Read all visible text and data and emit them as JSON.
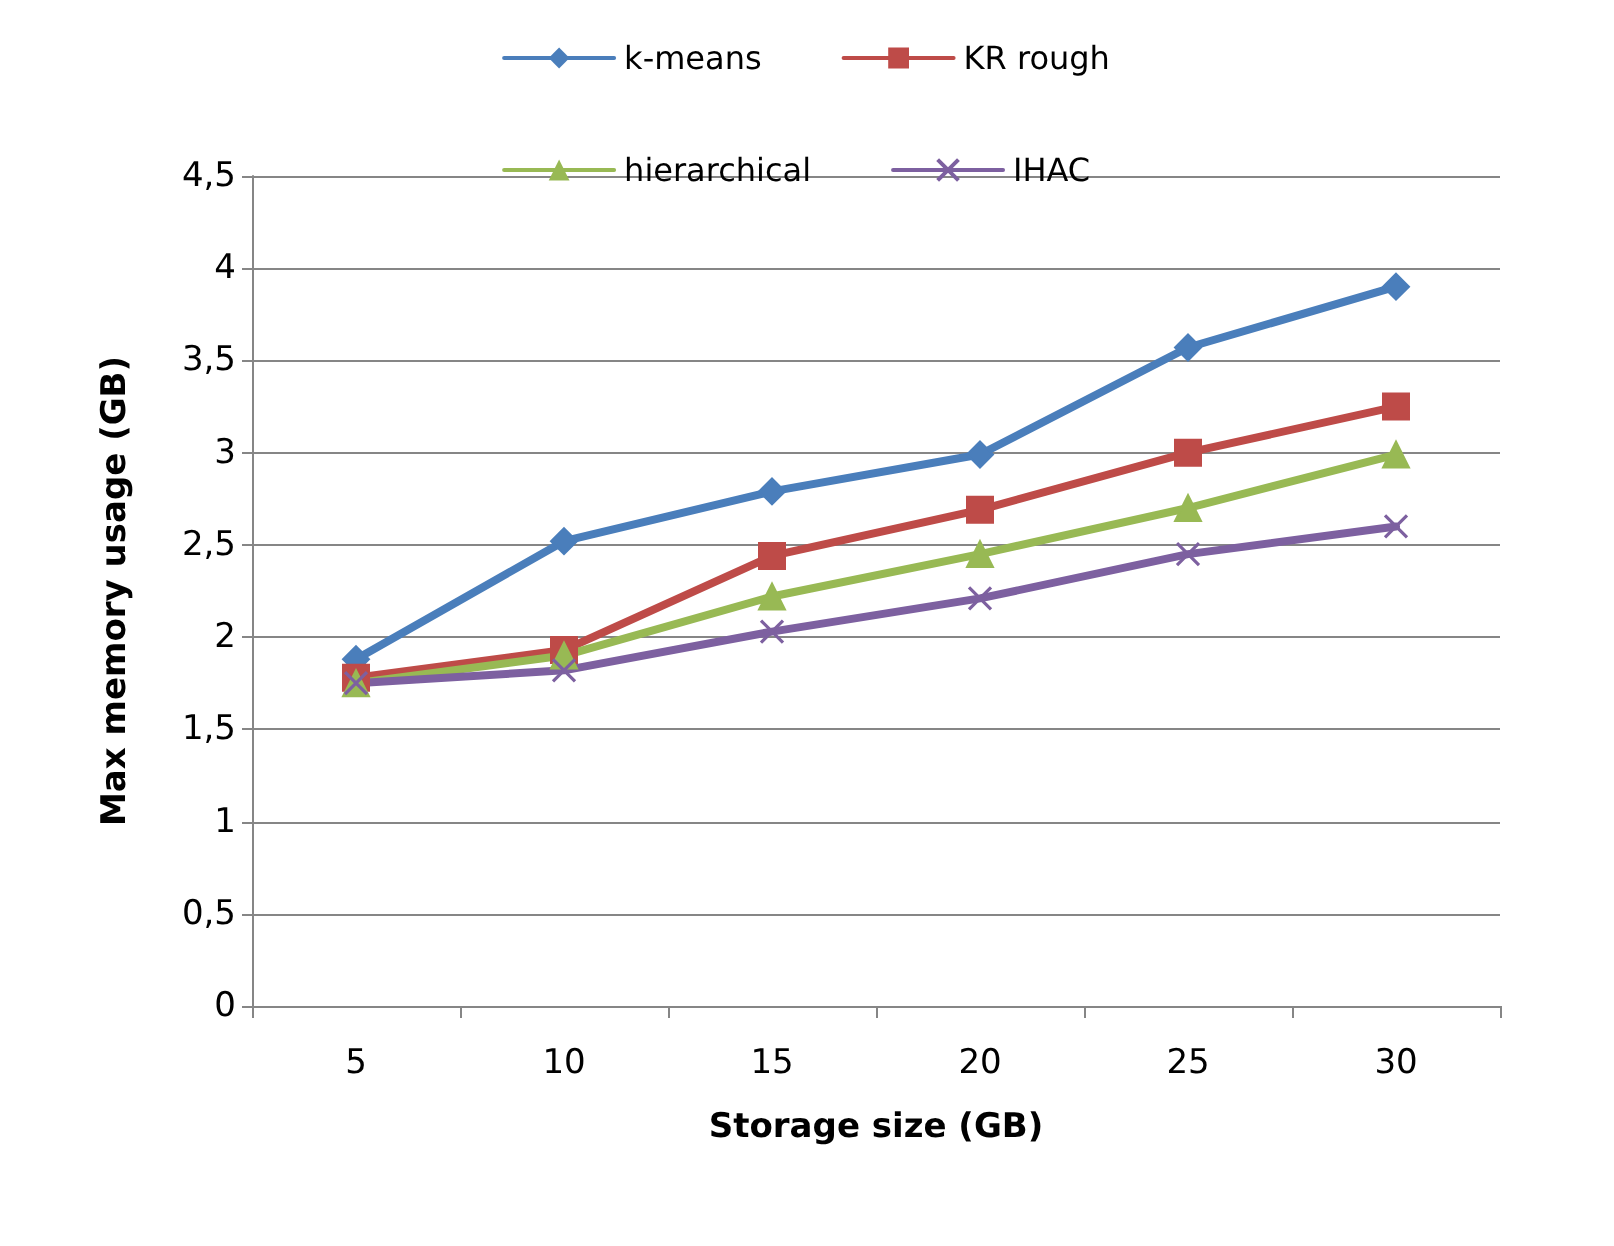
{
  "chart_data": {
    "type": "line",
    "xlabel": "Storage size (GB)",
    "ylabel": "Max memory usage (GB)",
    "categories": [
      "5",
      "10",
      "15",
      "20",
      "25",
      "30"
    ],
    "series": [
      {
        "name": "k-means",
        "color": "#4a7ebb",
        "marker": "diamond",
        "values": [
          1.88,
          2.52,
          2.79,
          2.99,
          3.57,
          3.9
        ]
      },
      {
        "name": "KR rough",
        "color": "#be4b48",
        "marker": "square",
        "values": [
          1.78,
          1.93,
          2.44,
          2.69,
          3.0,
          3.25
        ]
      },
      {
        "name": "hierarchical",
        "color": "#98b954",
        "marker": "triangle",
        "values": [
          1.75,
          1.9,
          2.22,
          2.45,
          2.7,
          2.99
        ]
      },
      {
        "name": "IHAC",
        "color": "#7d60a0",
        "marker": "cross",
        "values": [
          1.75,
          1.82,
          2.03,
          2.21,
          2.45,
          2.6
        ]
      }
    ],
    "ylim": [
      0,
      4.5
    ],
    "yticks": [
      0,
      {
        "value": 0.5,
        "label": "0,5"
      },
      1,
      {
        "value": 1.5,
        "label": "1,5"
      },
      2,
      {
        "value": 2.5,
        "label": "2,5"
      },
      3,
      {
        "value": 3.5,
        "label": "3,5"
      },
      4,
      {
        "value": 4.5,
        "label": "4,5"
      }
    ],
    "grid": "y",
    "legend": "top"
  }
}
